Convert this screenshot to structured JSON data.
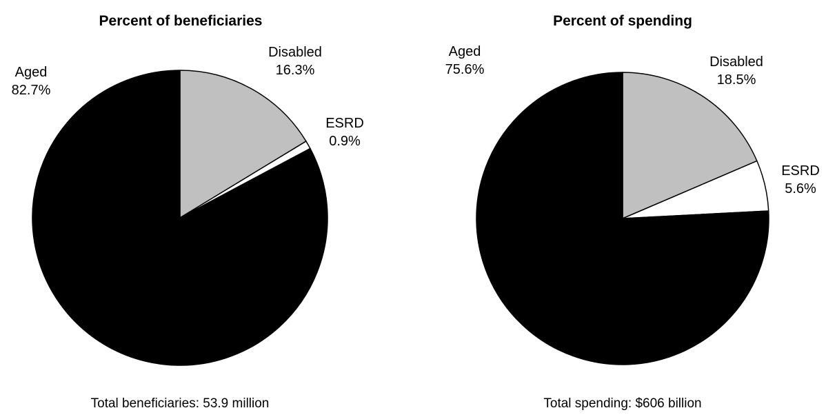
{
  "chart_data": [
    {
      "type": "pie",
      "title": "Percent of beneficiaries",
      "categories": [
        "Disabled",
        "ESRD",
        "Aged"
      ],
      "values": [
        16.3,
        0.9,
        82.7
      ],
      "value_labels": [
        "16.3%",
        "0.9%",
        "82.7%"
      ],
      "total_label": "Total beneficiaries: 53.9 million",
      "start_angle": "12 o'clock",
      "direction": "clockwise",
      "legend": "none",
      "slice_colors": [
        "#c0c0c0",
        "#ffffff",
        "#000000"
      ],
      "stroke_color": "#000000"
    },
    {
      "type": "pie",
      "title": "Percent of spending",
      "categories": [
        "Disabled",
        "ESRD",
        "Aged"
      ],
      "values": [
        18.5,
        5.6,
        75.6
      ],
      "value_labels": [
        "18.5%",
        "5.6%",
        "75.6%"
      ],
      "total_label": "Total spending:  $606 billion",
      "start_angle": "12 o'clock",
      "direction": "clockwise",
      "legend": "none",
      "slice_colors": [
        "#c0c0c0",
        "#ffffff",
        "#000000"
      ],
      "stroke_color": "#000000"
    }
  ]
}
